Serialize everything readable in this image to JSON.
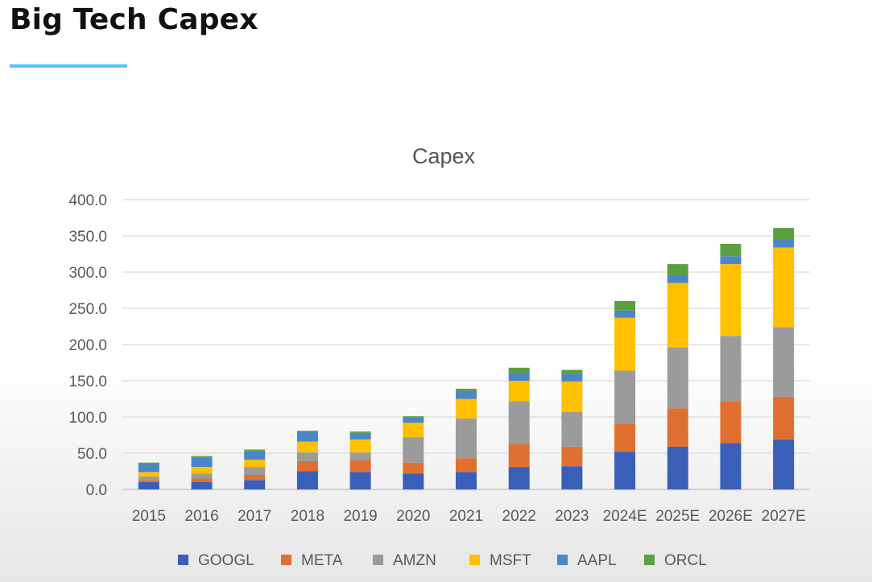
{
  "slide": {
    "title": "Big Tech Capex",
    "accent_color": "#4fc3f7"
  },
  "chart_data": {
    "type": "bar",
    "stacked": true,
    "title": "Capex",
    "xlabel": "",
    "ylabel": "",
    "ylim": [
      0,
      400
    ],
    "yticks": [
      "0.0",
      "50.0",
      "100.0",
      "150.0",
      "200.0",
      "250.0",
      "300.0",
      "350.0",
      "400.0"
    ],
    "grid": true,
    "legend_position": "bottom",
    "categories": [
      "2015",
      "2016",
      "2017",
      "2018",
      "2019",
      "2020",
      "2021",
      "2022",
      "2023",
      "2024E",
      "2025E",
      "2026E",
      "2027E"
    ],
    "series": [
      {
        "name": "GOOGL",
        "color": "#3a5fb8",
        "values": [
          10,
          10,
          13,
          25,
          24,
          22,
          24,
          31,
          32,
          52,
          59,
          64,
          69
        ]
      },
      {
        "name": "META",
        "color": "#e07030",
        "values": [
          3,
          5,
          7,
          14,
          16,
          15,
          19,
          32,
          27,
          38,
          53,
          58,
          59
        ]
      },
      {
        "name": "AMZN",
        "color": "#9b9b9b",
        "values": [
          5,
          7,
          11,
          12,
          11,
          35,
          55,
          59,
          48,
          74,
          84,
          90,
          96
        ]
      },
      {
        "name": "MSFT",
        "color": "#ffc000",
        "values": [
          6,
          9,
          10,
          15,
          18,
          20,
          27,
          28,
          42,
          73,
          89,
          99,
          110
        ]
      },
      {
        "name": "AAPL",
        "color": "#4a86c8",
        "values": [
          11,
          13,
          12,
          13,
          9,
          7,
          11,
          11,
          10,
          10,
          10,
          11,
          11
        ]
      },
      {
        "name": "ORCL",
        "color": "#5aa040",
        "values": [
          2,
          2,
          2,
          2,
          2,
          2,
          3,
          7,
          6,
          13,
          16,
          17,
          16
        ]
      }
    ]
  }
}
